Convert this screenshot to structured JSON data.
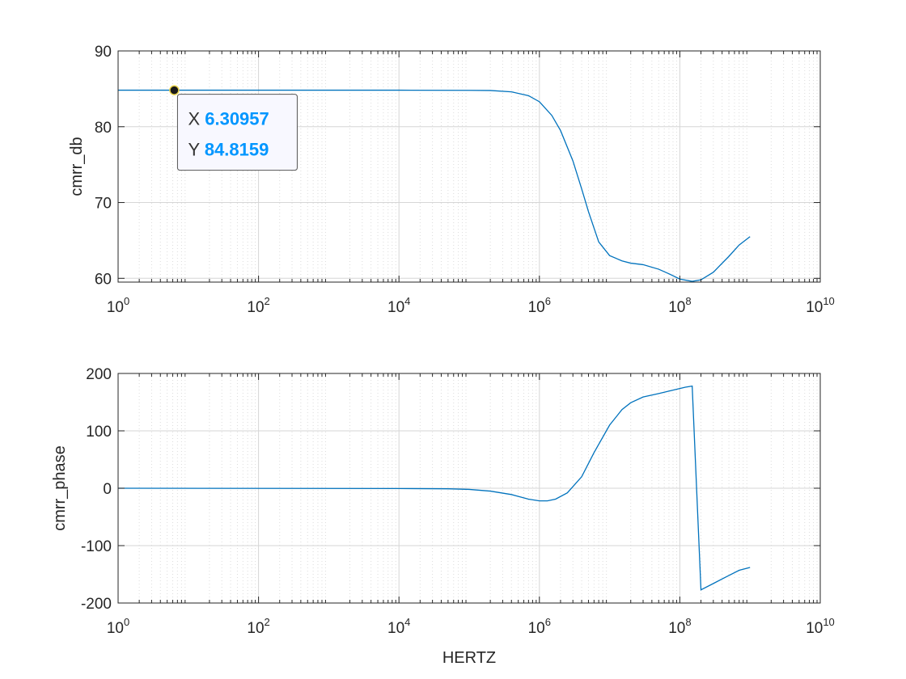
{
  "chart_data": [
    {
      "type": "line",
      "xscale": "log",
      "xlim": [
        1,
        10000000000
      ],
      "ylim": [
        59.5,
        90
      ],
      "grid": "on",
      "xlabel": "",
      "ylabel": "cmrr_db",
      "x_ticks": [
        1,
        100,
        10000,
        1000000,
        100000000,
        10000000000
      ],
      "x_tick_labels": [
        {
          "base": "10",
          "exp": "0"
        },
        {
          "base": "10",
          "exp": "2"
        },
        {
          "base": "10",
          "exp": "4"
        },
        {
          "base": "10",
          "exp": "6"
        },
        {
          "base": "10",
          "exp": "8"
        },
        {
          "base": "10",
          "exp": "10"
        }
      ],
      "y_ticks": [
        60,
        70,
        80,
        90
      ],
      "y_tick_labels": [
        "60",
        "70",
        "80",
        "90"
      ],
      "series": [
        {
          "color": "#0072BD",
          "x": [
            1,
            1000,
            10000,
            100000,
            200000,
            400000,
            700000,
            1000000,
            1500000,
            2000000,
            3000000,
            4000000,
            5000000,
            7000000,
            10000000,
            15000000,
            20000000,
            30000000,
            50000000,
            70000000,
            100000000,
            150000000,
            200000000,
            300000000,
            500000000,
            700000000,
            1000000000
          ],
          "y": [
            84.82,
            84.82,
            84.82,
            84.8,
            84.78,
            84.6,
            84.1,
            83.3,
            81.5,
            79.5,
            75.5,
            71.8,
            68.8,
            64.8,
            63.0,
            62.3,
            62.0,
            61.8,
            61.2,
            60.6,
            59.9,
            59.6,
            59.8,
            60.8,
            62.9,
            64.4,
            65.5
          ]
        }
      ],
      "datatip": {
        "x": 6.30957,
        "y": 84.8159,
        "x_key": "X",
        "y_key": "Y",
        "x_text": "6.30957",
        "y_text": "84.8159",
        "value_color": "#0096FF"
      }
    },
    {
      "type": "line",
      "xscale": "log",
      "xlim": [
        1,
        10000000000
      ],
      "ylim": [
        -200,
        200
      ],
      "grid": "on",
      "xlabel": "HERTZ",
      "ylabel": "cmrr_phase",
      "x_ticks": [
        1,
        100,
        10000,
        1000000,
        100000000,
        10000000000
      ],
      "x_tick_labels": [
        {
          "base": "10",
          "exp": "0"
        },
        {
          "base": "10",
          "exp": "2"
        },
        {
          "base": "10",
          "exp": "4"
        },
        {
          "base": "10",
          "exp": "6"
        },
        {
          "base": "10",
          "exp": "8"
        },
        {
          "base": "10",
          "exp": "10"
        }
      ],
      "y_ticks": [
        -200,
        -100,
        0,
        100,
        200
      ],
      "y_tick_labels": [
        "-200",
        "-100",
        "0",
        "100",
        "200"
      ],
      "series": [
        {
          "color": "#0072BD",
          "x": [
            1,
            10000,
            50000,
            100000,
            200000,
            400000,
            700000,
            1000000,
            1300000,
            1700000,
            2500000,
            4000000,
            6000000,
            10000000,
            15000000,
            20000000,
            30000000,
            50000000,
            80000000,
            120000000,
            150000000,
            200000000,
            300000000,
            500000000,
            700000000,
            1000000000
          ],
          "y": [
            0,
            -0.5,
            -1,
            -2,
            -5,
            -11,
            -19,
            -22,
            -22,
            -19,
            -8,
            20,
            62,
            110,
            137,
            149,
            159,
            165,
            171,
            176,
            178,
            -177,
            -166,
            -152,
            -143,
            -138
          ]
        }
      ]
    }
  ]
}
